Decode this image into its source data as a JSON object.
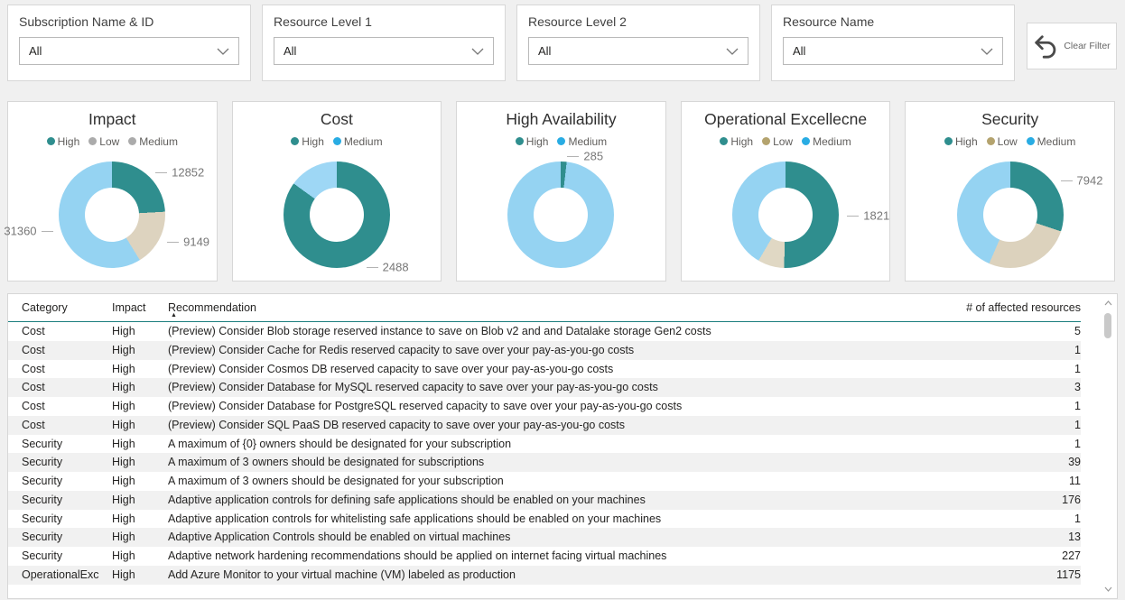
{
  "filters": {
    "items": [
      {
        "label": "Subscription Name & ID",
        "value": "All"
      },
      {
        "label": "Resource Level 1",
        "value": "All"
      },
      {
        "label": "Resource Level 2",
        "value": "All"
      },
      {
        "label": "Resource Name",
        "value": "All"
      }
    ],
    "clear_label": "Clear Filter"
  },
  "chart_data": [
    {
      "type": "pie",
      "donut": true,
      "title": "Impact",
      "legend_position": "top",
      "segments": [
        {
          "name": "High",
          "value": 12852,
          "color": "#2f8e8e",
          "legend_color": "#2f8e8e",
          "label": "12852"
        },
        {
          "name": "Low",
          "value": 9149,
          "color": "#ddd3bf",
          "legend_color": "#ababab",
          "label": "9149"
        },
        {
          "name": "Medium",
          "value": 31360,
          "color": "#95d3f2",
          "legend_color": "#ababab",
          "label": "31360"
        }
      ]
    },
    {
      "type": "pie",
      "donut": true,
      "title": "Cost",
      "legend_position": "top",
      "segments": [
        {
          "name": "High",
          "value": 2488,
          "color": "#2f8e8e",
          "legend_color": "#2f8e8e",
          "label": "2488"
        },
        {
          "name": "Medium",
          "value": 440,
          "color": "#9ed7f5",
          "legend_color": "#29ace3",
          "label": null,
          "estimated": true
        }
      ]
    },
    {
      "type": "pie",
      "donut": true,
      "title": "High Availability",
      "legend_position": "top",
      "segments": [
        {
          "name": "High",
          "value": 285,
          "color": "#2f8e8e",
          "legend_color": "#2f8e8e",
          "label": "285"
        },
        {
          "name": "Medium",
          "value": 15500,
          "color": "#95d3f2",
          "legend_color": "#29ace3",
          "label": null,
          "estimated": true
        }
      ]
    },
    {
      "type": "pie",
      "donut": true,
      "title": "Operational Excellecne",
      "legend_position": "top",
      "segments": [
        {
          "name": "High",
          "value": 1821,
          "color": "#2f8e8e",
          "legend_color": "#2f8e8e",
          "label": "1821"
        },
        {
          "name": "Low",
          "value": 290,
          "color": "#e0d8c4",
          "legend_color": "#b4a36e",
          "label": null,
          "estimated": true
        },
        {
          "name": "Medium",
          "value": 1500,
          "color": "#95d3f2",
          "legend_color": "#29ace3",
          "label": null,
          "estimated": true
        }
      ]
    },
    {
      "type": "pie",
      "donut": true,
      "title": "Security",
      "legend_position": "top",
      "segments": [
        {
          "name": "High",
          "value": 7942,
          "color": "#2f8e8e",
          "legend_color": "#2f8e8e",
          "label": "7942"
        },
        {
          "name": "Low",
          "value": 7000,
          "color": "#dcd2bd",
          "legend_color": "#b4a36e",
          "label": null,
          "estimated": true
        },
        {
          "name": "Medium",
          "value": 11500,
          "color": "#95d3f2",
          "legend_color": "#29ace3",
          "label": null,
          "estimated": true
        }
      ]
    }
  ],
  "table": {
    "columns": [
      "Category",
      "Impact",
      "Recommendation",
      "# of affected resources"
    ],
    "sort_column": "Recommendation",
    "sort_direction": "ascending",
    "rows": [
      [
        "Cost",
        "High",
        "(Preview) Consider Blob storage reserved instance to save on Blob v2 and and Datalake storage Gen2 costs",
        "5"
      ],
      [
        "Cost",
        "High",
        "(Preview) Consider Cache for Redis reserved capacity to save over your pay-as-you-go costs",
        "1"
      ],
      [
        "Cost",
        "High",
        "(Preview) Consider Cosmos DB reserved capacity to save over your pay-as-you-go costs",
        "1"
      ],
      [
        "Cost",
        "High",
        "(Preview) Consider Database for MySQL reserved capacity to save over your pay-as-you-go costs",
        "3"
      ],
      [
        "Cost",
        "High",
        "(Preview) Consider Database for PostgreSQL reserved capacity to save over your pay-as-you-go costs",
        "1"
      ],
      [
        "Cost",
        "High",
        "(Preview) Consider SQL PaaS DB reserved capacity to save over your pay-as-you-go costs",
        "1"
      ],
      [
        "Security",
        "High",
        "A maximum of {0} owners should be designated for your subscription",
        "1"
      ],
      [
        "Security",
        "High",
        "A maximum of 3 owners should be designated for subscriptions",
        "39"
      ],
      [
        "Security",
        "High",
        "A maximum of 3 owners should be designated for your subscription",
        "11"
      ],
      [
        "Security",
        "High",
        "Adaptive application controls for defining safe applications should be enabled on your machines",
        "176"
      ],
      [
        "Security",
        "High",
        "Adaptive application controls for whitelisting safe applications should be enabled on your machines",
        "1"
      ],
      [
        "Security",
        "High",
        "Adaptive Application Controls should be enabled on virtual machines",
        "13"
      ],
      [
        "Security",
        "High",
        "Adaptive network hardening recommendations should be applied on internet facing virtual machines",
        "227"
      ],
      [
        "OperationalExc",
        "High",
        "Add Azure Monitor to your virtual machine (VM) labeled as production",
        "1175"
      ]
    ]
  },
  "colors": {
    "accent_teal": "#2f8e8e",
    "light_blue_segment": "#95d3f2",
    "legend_blue": "#29ace3",
    "tan_segment": "#dcd2bd",
    "legend_tan": "#b4a36e",
    "legend_gray": "#ababab",
    "header_underline": "#1b7e7e",
    "alt_row": "#f1f1f1",
    "page_background": "#f0f0f0"
  }
}
